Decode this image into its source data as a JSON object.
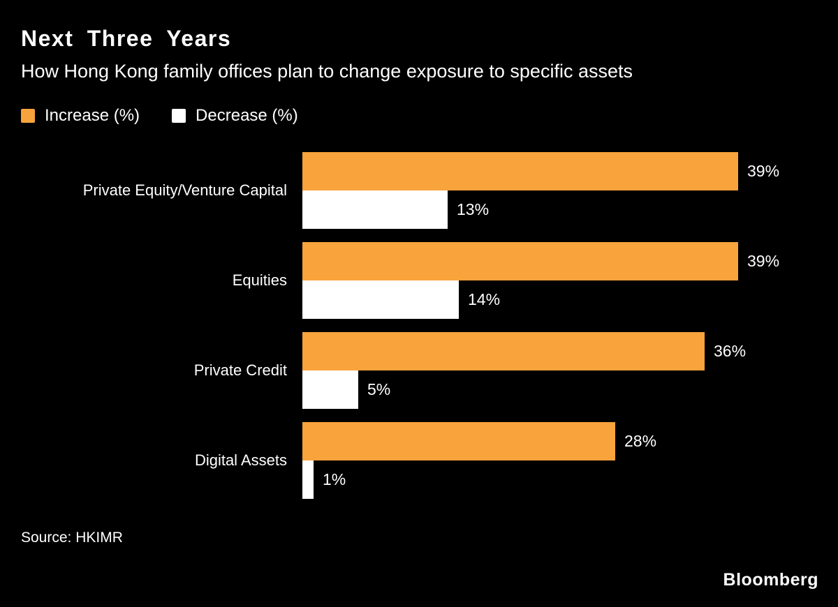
{
  "header": {
    "title": "Next Three Years",
    "subtitle": "How Hong Kong family offices plan to change exposure to specific assets"
  },
  "legend": {
    "increase_label": "Increase (%)",
    "decrease_label": "Decrease (%)"
  },
  "colors": {
    "background": "#000000",
    "increase": "#F8A33C",
    "decrease": "#FFFFFF",
    "text": "#FFFFFF"
  },
  "chart_data": {
    "type": "bar",
    "orientation": "horizontal",
    "title": "Next Three Years",
    "subtitle": "How Hong Kong family offices plan to change exposure to specific assets",
    "categories": [
      "Private Equity/Venture Capital",
      "Equities",
      "Private Credit",
      "Digital Assets"
    ],
    "series": [
      {
        "name": "Increase (%)",
        "color": "#F8A33C",
        "values": [
          39,
          39,
          36,
          28
        ],
        "labels": [
          "39%",
          "39%",
          "36%",
          "28%"
        ]
      },
      {
        "name": "Decrease (%)",
        "color": "#FFFFFF",
        "values": [
          13,
          14,
          5,
          1
        ],
        "labels": [
          "13%",
          "14%",
          "5%",
          "1%"
        ]
      }
    ],
    "xlim": [
      0,
      40
    ],
    "value_suffix": "%",
    "grid": false,
    "legend_position": "top-left"
  },
  "footer": {
    "source": "Source: HKIMR",
    "brand": "Bloomberg"
  }
}
